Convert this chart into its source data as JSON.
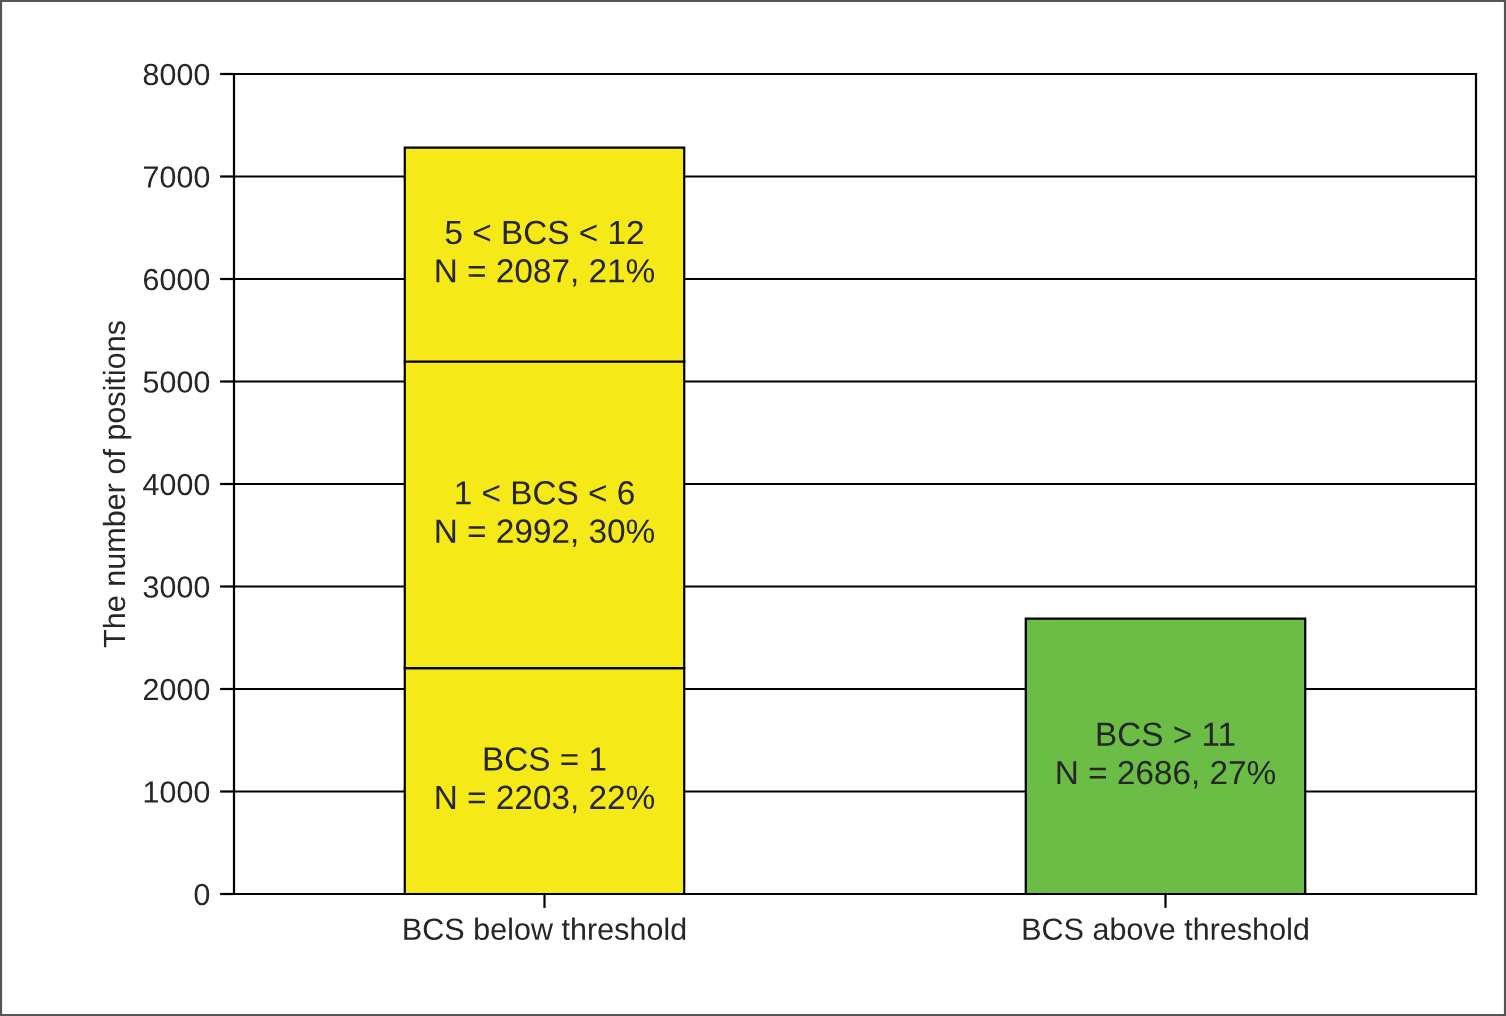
{
  "chart_data": {
    "type": "bar",
    "stacked": true,
    "ylabel": "The number of positions",
    "categories": [
      "BCS below threshold",
      "BCS above threshold"
    ],
    "series": [
      {
        "colors": [
          "#f5e918",
          "#6cbd45"
        ],
        "values": [
          2203,
          2686
        ]
      },
      {
        "color": "#f5e918",
        "values": [
          2992,
          null
        ]
      },
      {
        "color": "#f5e918",
        "values": [
          2087,
          null
        ]
      }
    ],
    "ylim": [
      0,
      8000
    ],
    "yticks": [
      0,
      1000,
      2000,
      3000,
      4000,
      5000,
      6000,
      7000,
      8000
    ],
    "grid": "y",
    "annotations": [
      "BCS = 1\nN = 2203, 22%",
      "BCS > 11\nN = 2686, 27%",
      "1 < BCS < 6\nN = 2992, 30%",
      "5 < BCS < 12\nN = 2087, 21%"
    ]
  }
}
